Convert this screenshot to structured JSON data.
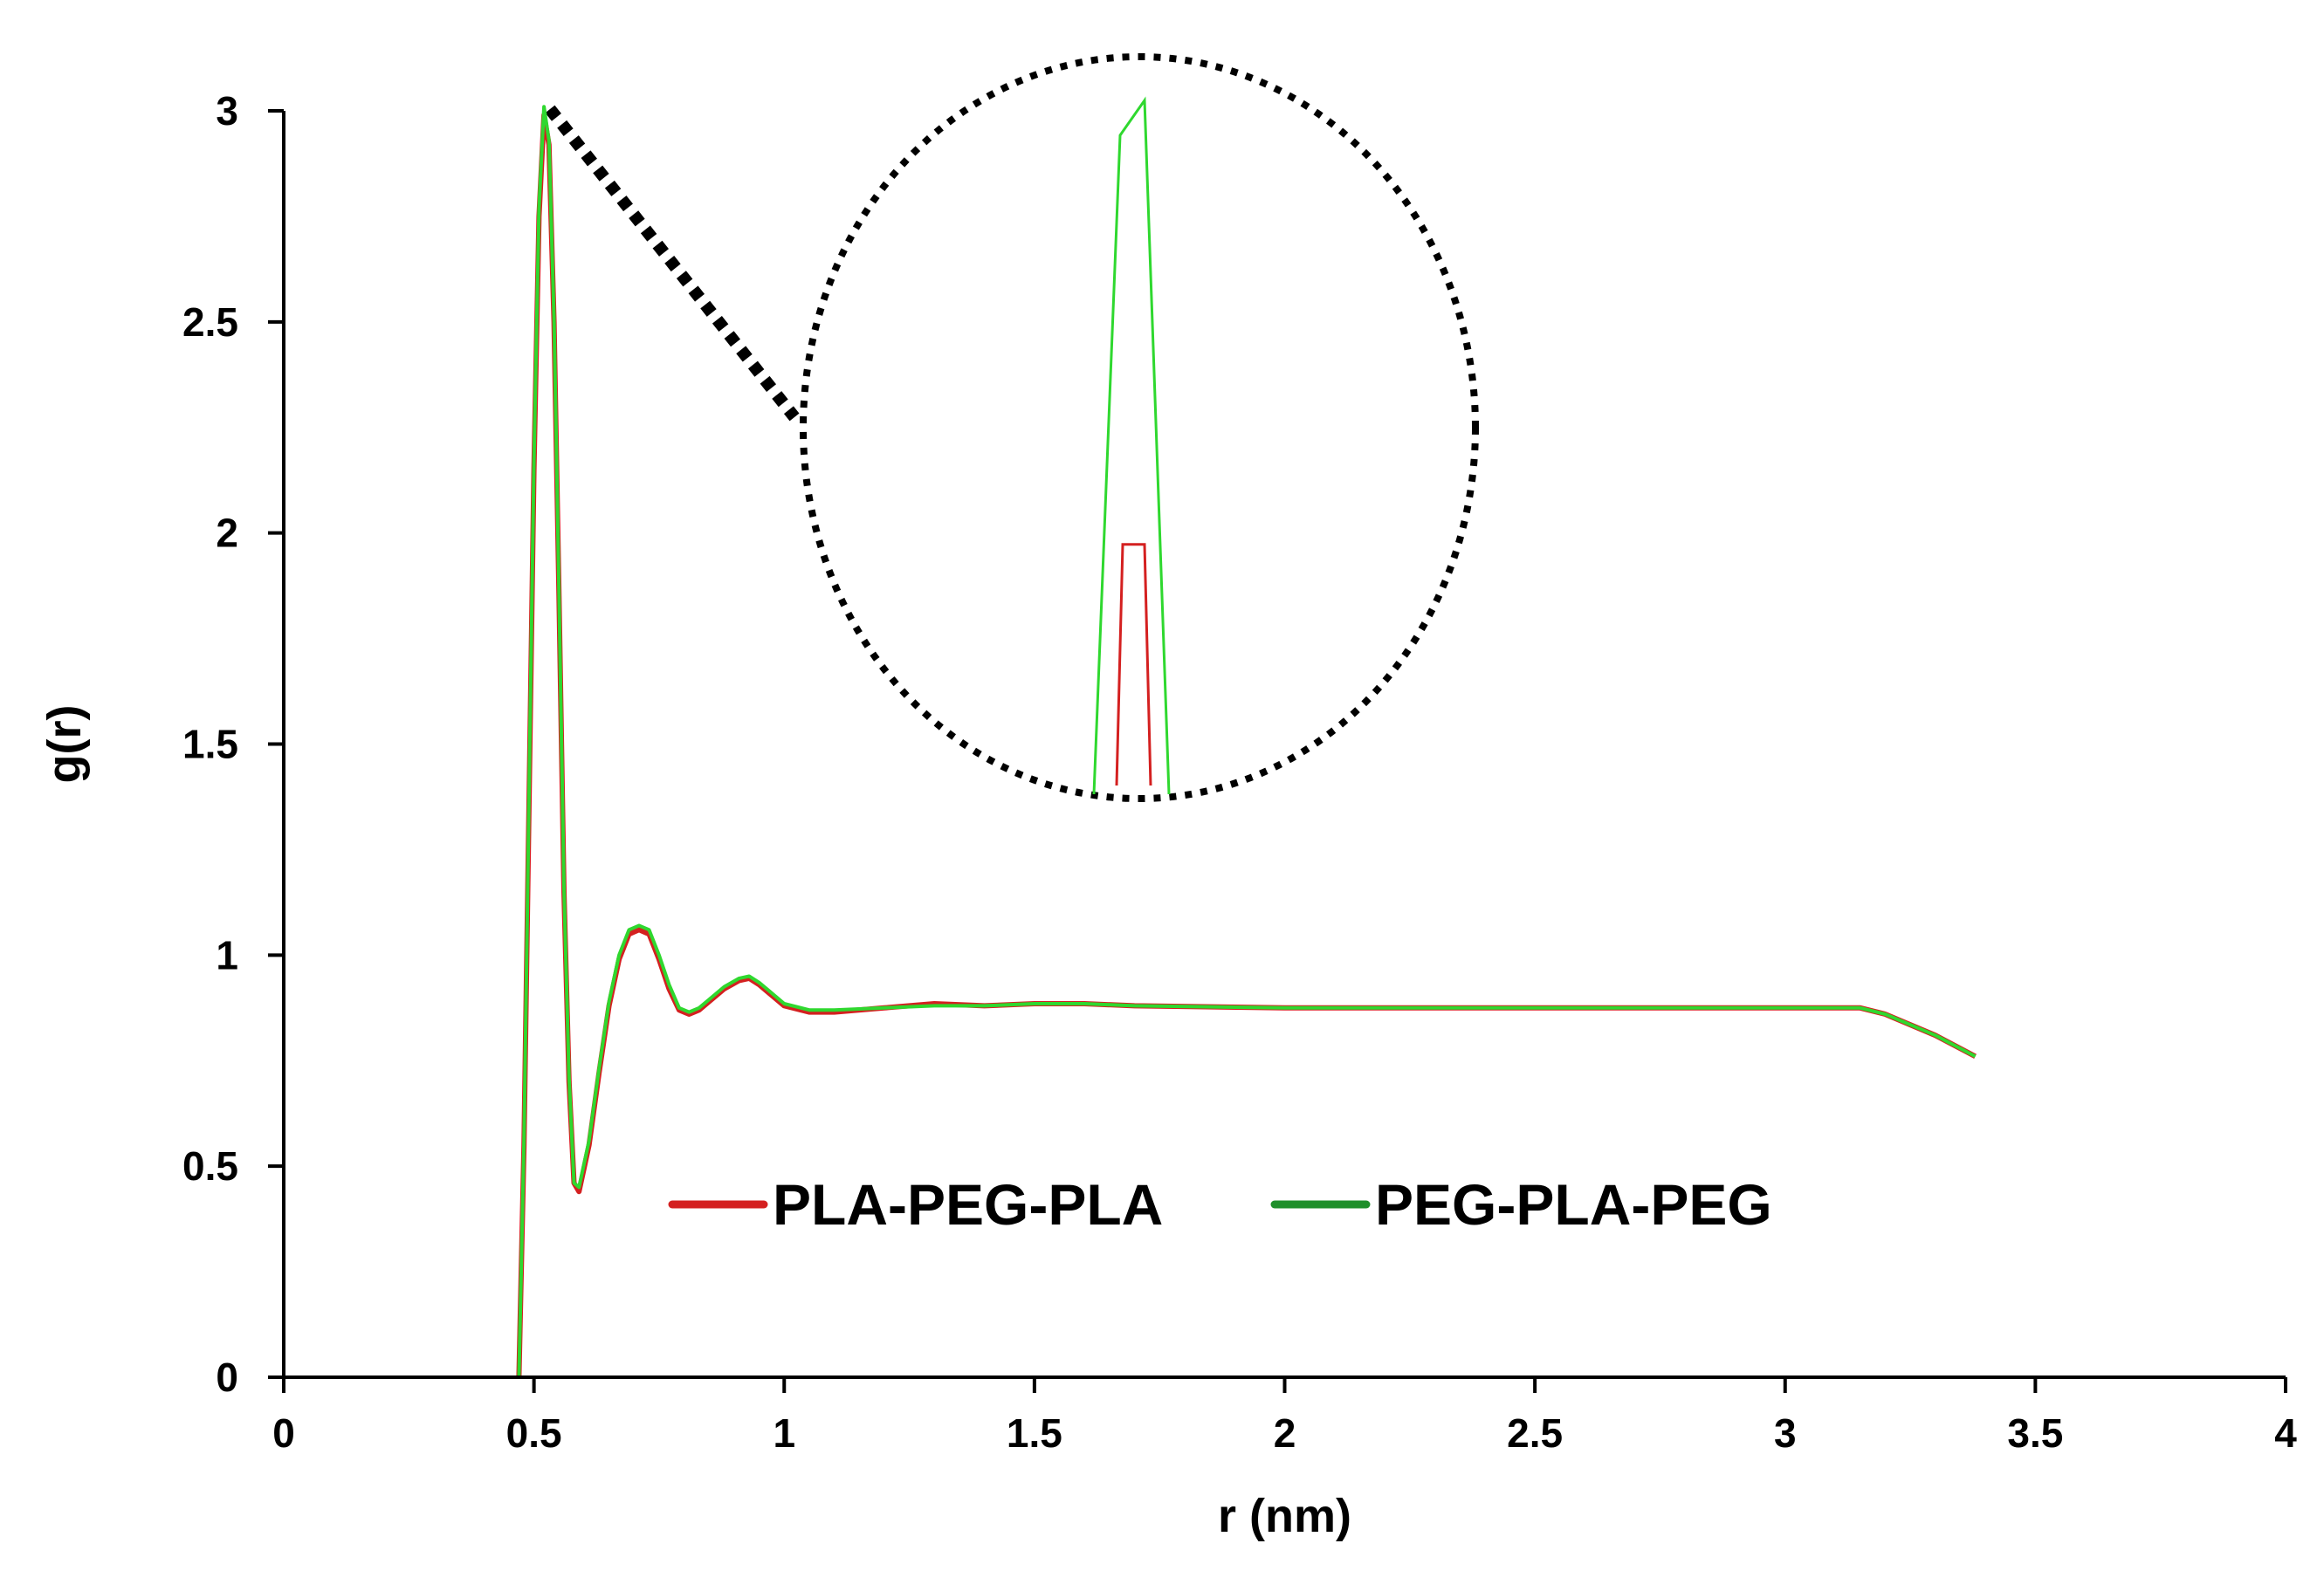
{
  "chart_data": {
    "type": "line",
    "title": "",
    "xlabel": "r (nm)",
    "ylabel": "g(r)",
    "xlim": [
      0,
      4
    ],
    "ylim": [
      0,
      3
    ],
    "x_ticks": [
      0,
      0.5,
      1,
      1.5,
      2,
      2.5,
      3,
      3.5,
      4
    ],
    "x_tick_labels": [
      "0",
      "0.5",
      "1",
      "1.5",
      "2",
      "2.5",
      "3",
      "3.5",
      "4"
    ],
    "y_ticks": [
      0,
      0.5,
      1,
      1.5,
      2,
      2.5,
      3
    ],
    "y_tick_labels": [
      "0",
      "0.5",
      "1",
      "1.5",
      "2",
      "2.5",
      "3"
    ],
    "grid": false,
    "legend_position": "bottom-center",
    "series": [
      {
        "name": "PLA-PEG-PLA",
        "color": "#d42020",
        "x": [
          0.47,
          0.48,
          0.49,
          0.5,
          0.51,
          0.52,
          0.53,
          0.54,
          0.55,
          0.56,
          0.57,
          0.58,
          0.59,
          0.61,
          0.63,
          0.65,
          0.67,
          0.69,
          0.71,
          0.73,
          0.75,
          0.77,
          0.79,
          0.81,
          0.83,
          0.85,
          0.88,
          0.91,
          0.93,
          0.95,
          0.97,
          1.0,
          1.05,
          1.1,
          1.2,
          1.3,
          1.4,
          1.5,
          1.6,
          1.7,
          2.0,
          2.5,
          3.0,
          3.15,
          3.2,
          3.3,
          3.38
        ],
        "y": [
          0.0,
          0.55,
          1.35,
          2.15,
          2.75,
          2.99,
          2.92,
          2.5,
          1.85,
          1.15,
          0.7,
          0.46,
          0.44,
          0.55,
          0.72,
          0.88,
          0.99,
          1.05,
          1.06,
          1.05,
          0.99,
          0.92,
          0.87,
          0.86,
          0.87,
          0.89,
          0.92,
          0.94,
          0.945,
          0.93,
          0.91,
          0.88,
          0.865,
          0.865,
          0.875,
          0.885,
          0.88,
          0.885,
          0.885,
          0.88,
          0.875,
          0.875,
          0.875,
          0.875,
          0.86,
          0.81,
          0.76
        ]
      },
      {
        "name": "PEG-PLA-PEG",
        "color": "#1ba82a",
        "x": [
          0.47,
          0.48,
          0.49,
          0.5,
          0.51,
          0.52,
          0.53,
          0.54,
          0.55,
          0.56,
          0.57,
          0.58,
          0.59,
          0.61,
          0.63,
          0.65,
          0.67,
          0.69,
          0.71,
          0.73,
          0.75,
          0.77,
          0.79,
          0.81,
          0.83,
          0.85,
          0.88,
          0.91,
          0.93,
          0.95,
          0.97,
          1.0,
          1.05,
          1.1,
          1.2,
          1.3,
          1.4,
          1.5,
          1.6,
          1.7,
          2.0,
          2.5,
          3.0,
          3.15,
          3.2,
          3.3,
          3.38
        ],
        "y": [
          0.0,
          0.56,
          1.37,
          2.17,
          2.77,
          3.01,
          2.93,
          2.51,
          1.86,
          1.16,
          0.71,
          0.46,
          0.45,
          0.56,
          0.73,
          0.89,
          1.0,
          1.06,
          1.07,
          1.06,
          1.0,
          0.93,
          0.875,
          0.865,
          0.875,
          0.895,
          0.925,
          0.945,
          0.95,
          0.935,
          0.915,
          0.885,
          0.87,
          0.87,
          0.875,
          0.88,
          0.88,
          0.885,
          0.885,
          0.88,
          0.875,
          0.875,
          0.875,
          0.875,
          0.86,
          0.81,
          0.76
        ]
      }
    ],
    "inset": {
      "description": "magnified view of first peak",
      "peak_pla_relative": 0.2,
      "peak_peg_relative": 1.0
    }
  }
}
